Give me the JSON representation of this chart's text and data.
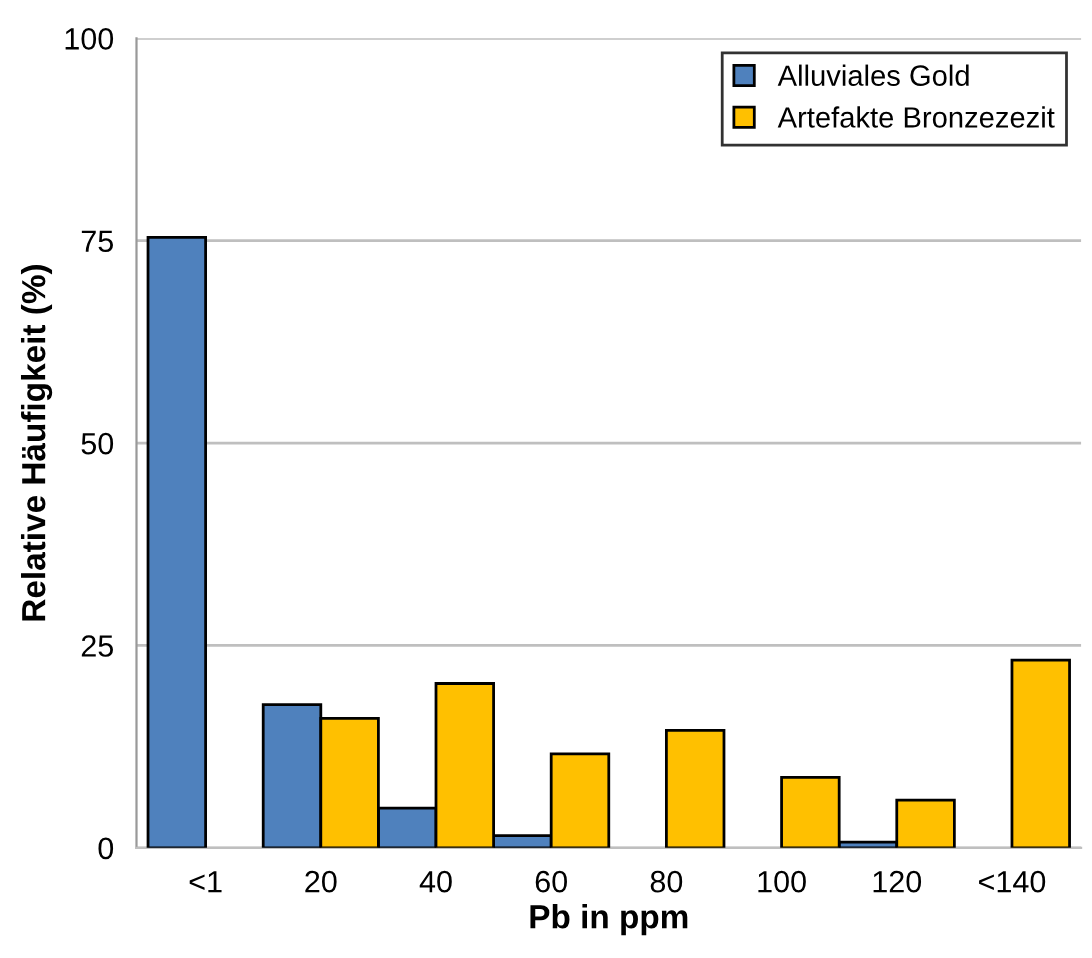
{
  "chart_data": {
    "type": "bar",
    "xlabel": "Pb in ppm",
    "ylabel": "Relative Häufigkeit (%)",
    "categories": [
      "<1",
      "20",
      "40",
      "60",
      "80",
      "100",
      "120",
      "<140"
    ],
    "series": [
      {
        "name": "Alluviales Gold",
        "color": "#4f81bd",
        "values": [
          75.4,
          17.7,
          4.9,
          1.5,
          null,
          null,
          0.7,
          null
        ]
      },
      {
        "name": "Artefakte Bronzezezit",
        "color": "#ffc000",
        "values": [
          null,
          16.0,
          20.3,
          11.6,
          14.5,
          8.7,
          5.9,
          23.2
        ]
      }
    ],
    "ylim": [
      0,
      100
    ],
    "yticks": [
      0,
      25,
      50,
      75,
      100
    ],
    "grid": "y",
    "legend": "top right"
  }
}
